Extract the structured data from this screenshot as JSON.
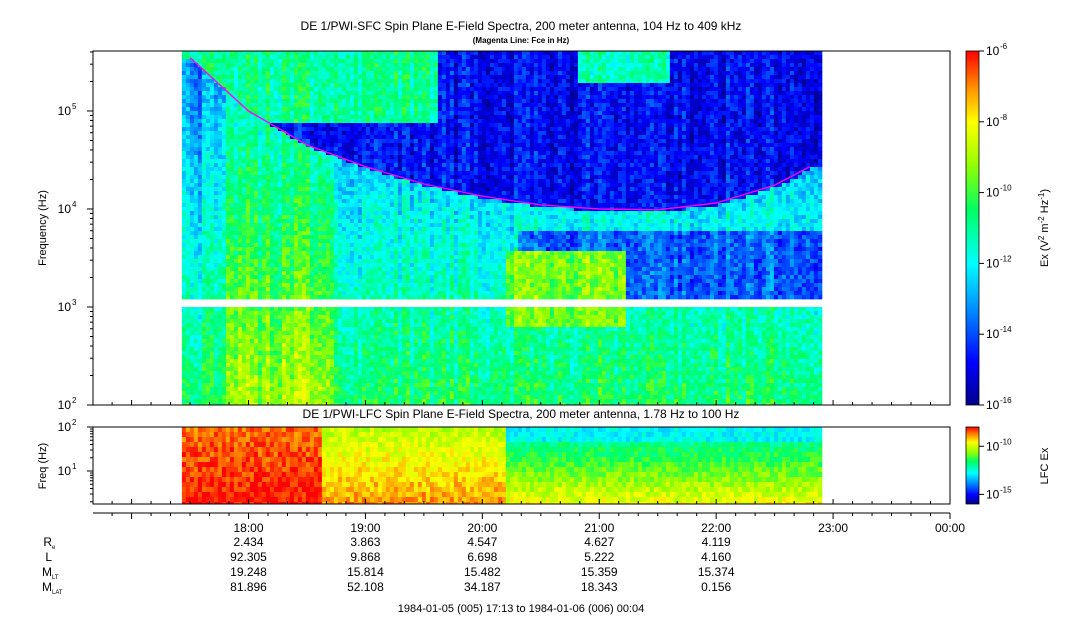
{
  "chart_data": [
    {
      "type": "heatmap",
      "title": "DE 1/PWI-SFC  Spin Plane E-Field Spectra, 200 meter antenna, 104 Hz to 409 kHz",
      "subtitle": "(Magenta Line: Fce in Hz)",
      "ylabel": "Frequency (Hz)",
      "y_scale": "log",
      "ylim": [
        100,
        409000
      ],
      "y_ticks": [
        {
          "value": 100,
          "mantissa": "10",
          "exp": "2"
        },
        {
          "value": 1000,
          "mantissa": "10",
          "exp": "3"
        },
        {
          "value": 10000,
          "mantissa": "10",
          "exp": "4"
        },
        {
          "value": 100000,
          "mantissa": "10",
          "exp": "5"
        }
      ],
      "data_start_hour": 17.43,
      "data_end_hour": 22.87,
      "gap_hz": [
        1000,
        1150
      ],
      "colorbar": {
        "label_parts": {
          "pre": "Ex (V",
          "sup1": "2",
          "mid": " m",
          "sup2": "-2",
          "mid2": " Hz",
          "sup3": "-1",
          "post": ")"
        },
        "scale": "log",
        "range": [
          1e-16,
          1e-06
        ],
        "ticks": [
          {
            "value": 1e-16,
            "mantissa": "10",
            "exp": "-16"
          },
          {
            "value": 1e-14,
            "mantissa": "10",
            "exp": "-14"
          },
          {
            "value": 1e-12,
            "mantissa": "10",
            "exp": "-12"
          },
          {
            "value": 1e-10,
            "mantissa": "10",
            "exp": "-10"
          },
          {
            "value": 1e-08,
            "mantissa": "10",
            "exp": "-8"
          },
          {
            "value": 1e-06,
            "mantissa": "10",
            "exp": "-6"
          }
        ]
      },
      "fce_line": {
        "color": "#ff00ff",
        "points": [
          [
            17.5,
            350000
          ],
          [
            18.0,
            100000
          ],
          [
            18.5,
            45000
          ],
          [
            19.0,
            27000
          ],
          [
            19.5,
            18000
          ],
          [
            20.0,
            13500
          ],
          [
            20.5,
            11000
          ],
          [
            21.0,
            10000
          ],
          [
            21.5,
            9800
          ],
          [
            22.0,
            11500
          ],
          [
            22.5,
            17500
          ],
          [
            22.8,
            27000
          ]
        ]
      }
    },
    {
      "type": "heatmap",
      "title": "DE 1/PWI-LFC  Spin Plane E-Field Spectra, 200 meter antenna, 1.78 Hz to 100 Hz",
      "ylabel": "Freq (Hz)",
      "y_scale": "log",
      "ylim": [
        1.78,
        100
      ],
      "y_ticks": [
        {
          "value": 10,
          "mantissa": "10",
          "exp": "1"
        },
        {
          "value": 100,
          "mantissa": "10",
          "exp": "2"
        }
      ],
      "data_start_hour": 17.43,
      "data_end_hour": 22.87,
      "colorbar": {
        "label": "LFC Ex",
        "scale": "log",
        "range": [
          1e-16,
          1e-08
        ],
        "ticks": [
          {
            "value": 1e-15,
            "mantissa": "10",
            "exp": "-15"
          },
          {
            "value": 1e-10,
            "mantissa": "10",
            "exp": "-10"
          }
        ]
      }
    }
  ],
  "time_axis": {
    "start_hour": 16.67,
    "end_hour": 24.0,
    "ticks": [
      {
        "hour": 18,
        "label": "18:00"
      },
      {
        "hour": 19,
        "label": "19:00"
      },
      {
        "hour": 20,
        "label": "20:00"
      },
      {
        "hour": 21,
        "label": "21:00"
      },
      {
        "hour": 22,
        "label": "22:00"
      },
      {
        "hour": 23,
        "label": "23:00"
      },
      {
        "hour": 24,
        "label": "00:00"
      }
    ],
    "range_label": "1984-01-05 (005) 17:13 to 1984-01-06 (006) 00:04"
  },
  "ephemeris": [
    {
      "label": "R",
      "sub": "e",
      "values": [
        "2.434",
        "3.863",
        "4.547",
        "4.627",
        "4.119"
      ]
    },
    {
      "label": "L",
      "sub": "",
      "values": [
        "92.305",
        "9.868",
        "6.698",
        "5.222",
        "4.160"
      ]
    },
    {
      "label": "M",
      "sub": "LT",
      "values": [
        "19.248",
        "15.814",
        "15.482",
        "15.359",
        "15.374"
      ]
    },
    {
      "label": "M",
      "sub": "LAT",
      "values": [
        "81.896",
        "52.108",
        "34.187",
        "18.343",
        "0.156"
      ]
    }
  ]
}
